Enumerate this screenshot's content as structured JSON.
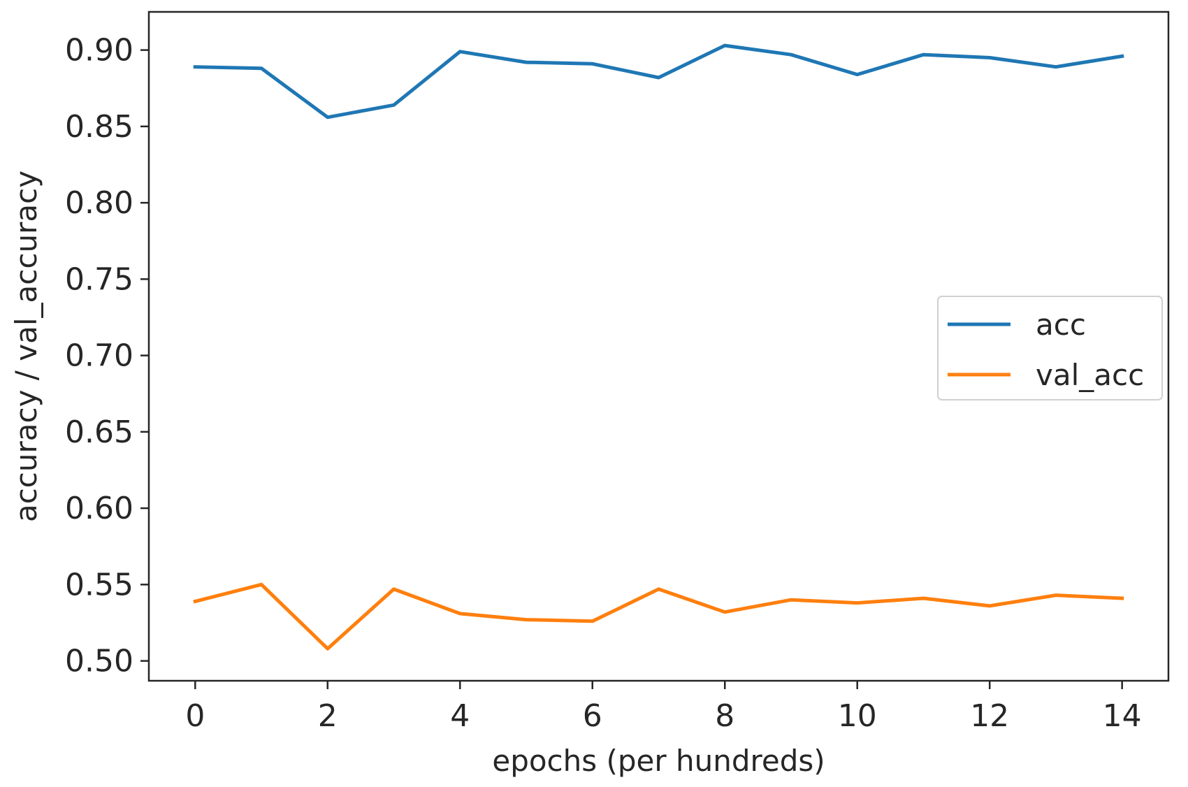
{
  "chart_data": {
    "type": "line",
    "title": "",
    "xlabel": "epochs (per hundreds)",
    "ylabel": "accuracy / val_accuracy",
    "xlim": [
      -0.7,
      14.7
    ],
    "ylim": [
      0.487,
      0.925
    ],
    "xticks": [
      0,
      2,
      4,
      6,
      8,
      10,
      12,
      14
    ],
    "yticks": [
      0.5,
      0.55,
      0.6,
      0.65,
      0.7,
      0.75,
      0.8,
      0.85,
      0.9
    ],
    "ytick_labels": [
      "0.50",
      "0.55",
      "0.60",
      "0.65",
      "0.70",
      "0.75",
      "0.80",
      "0.85",
      "0.90"
    ],
    "grid": false,
    "legend_position": "center-right",
    "x": [
      0,
      1,
      2,
      3,
      4,
      5,
      6,
      7,
      8,
      9,
      10,
      11,
      12,
      13,
      14
    ],
    "series": [
      {
        "name": "acc",
        "color": "#1f77b4",
        "values": [
          0.889,
          0.888,
          0.856,
          0.864,
          0.899,
          0.892,
          0.891,
          0.882,
          0.903,
          0.897,
          0.884,
          0.897,
          0.895,
          0.889,
          0.896
        ]
      },
      {
        "name": "val_acc",
        "color": "#ff7f0e",
        "values": [
          0.539,
          0.55,
          0.508,
          0.547,
          0.531,
          0.527,
          0.526,
          0.547,
          0.532,
          0.54,
          0.538,
          0.541,
          0.536,
          0.543,
          0.541
        ]
      }
    ]
  }
}
